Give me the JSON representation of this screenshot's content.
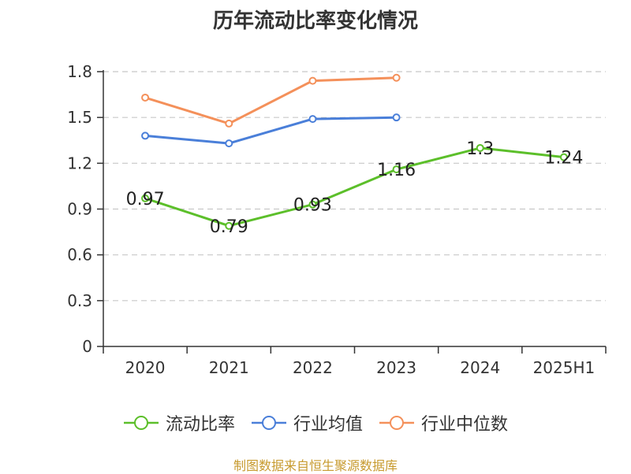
{
  "chart_data": {
    "type": "line",
    "title": "历年流动比率变化情况",
    "categories": [
      "2020",
      "2021",
      "2022",
      "2023",
      "2024",
      "2025H1"
    ],
    "ylim": [
      0,
      1.8
    ],
    "yticks": [
      "0",
      "0.3",
      "0.6",
      "0.9",
      "1.2",
      "1.5",
      "1.8"
    ],
    "grid": true,
    "legend_position": "bottom",
    "series": [
      {
        "name": "流动比率",
        "color": "#5cbf2a",
        "values": [
          0.97,
          0.79,
          0.93,
          1.16,
          1.3,
          1.24
        ],
        "labels": [
          "0.97",
          "0.79",
          "0.93",
          "1.16",
          "1.3",
          "1.24"
        ]
      },
      {
        "name": "行业均值",
        "color": "#4a7fd9",
        "values": [
          1.38,
          1.33,
          1.49,
          1.5,
          null,
          null
        ]
      },
      {
        "name": "行业中位数",
        "color": "#f4905a",
        "values": [
          1.63,
          1.46,
          1.74,
          1.76,
          null,
          null
        ]
      }
    ],
    "source": "制图数据来自恒生聚源数据库"
  }
}
